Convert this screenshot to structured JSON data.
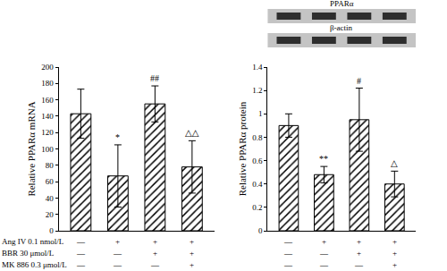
{
  "chart_data": [
    {
      "type": "bar",
      "y_label": "Relative PPARα mRNA",
      "categories": [
        null,
        null,
        null,
        null
      ],
      "values": [
        143,
        67,
        155,
        78
      ],
      "errors": [
        30,
        38,
        22,
        32
      ],
      "significance": [
        null,
        "*",
        "##",
        "△△"
      ],
      "color": "#000000",
      "ylim": [
        0,
        200
      ],
      "yticks": [
        0,
        20,
        40,
        60,
        80,
        100,
        120,
        140,
        160,
        180,
        200
      ],
      "tick_labels": "y",
      "grid": false
    },
    {
      "type": "bar",
      "y_label": "Relative PPARα protein",
      "categories": [
        null,
        null,
        null,
        null
      ],
      "values": [
        0.9,
        0.48,
        0.95,
        0.4
      ],
      "errors": [
        0.1,
        0.07,
        0.27,
        0.11
      ],
      "significance": [
        null,
        "**",
        "#",
        "△"
      ],
      "color": "#000000",
      "ylim": [
        0,
        1.4
      ],
      "yticks": [
        0,
        0.2,
        0.4,
        0.6,
        0.8,
        1,
        1.2,
        1.4
      ],
      "tick_labels": "y",
      "grid": false
    }
  ],
  "blot": {
    "labels": [
      "PPARα",
      "β-actin"
    ]
  },
  "conditions": [
    {
      "label": "Ang IV 0.1 nmol/L",
      "signs": [
        "—",
        "+",
        "+",
        "+"
      ]
    },
    {
      "label": "BBR 30 μmol/L",
      "signs": [
        "—",
        "—",
        "+",
        "+"
      ]
    },
    {
      "label": "MK 886 0.3 μmol/L",
      "signs": [
        "—",
        "—",
        "—",
        "+"
      ]
    }
  ]
}
